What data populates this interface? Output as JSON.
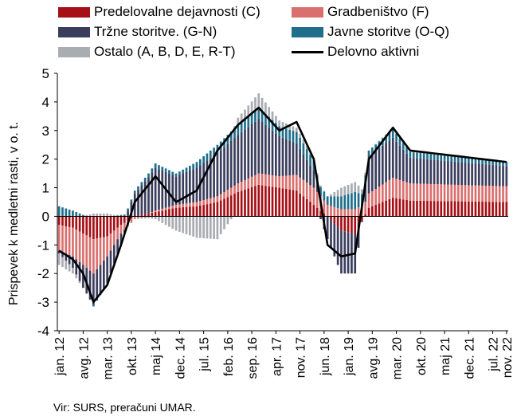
{
  "legend": {
    "manufacturing": "Predelovalne dejavnosti (C)",
    "construction": "Gradbeništvo (F)",
    "market": "Tržne storitve. (G-N)",
    "public": "Javne storitve (O-Q)",
    "other": "Ostalo (A, B, D, E, R-T)",
    "employed": "Delovno aktivni"
  },
  "source": "Vir: SURS, preračuni UMAR.",
  "colors": {
    "manufacturing": "#a50f15",
    "construction": "#d9706e",
    "market": "#3a3d5c",
    "public": "#1f6f8b",
    "other": "#a9acb0",
    "line": "#000000"
  },
  "chart_data": {
    "type": "bar",
    "stacked": true,
    "ylabel": "Prispevek k medletni rasti, v o. t.",
    "ylim": [
      -4,
      5
    ],
    "yticks": [
      -4,
      -3,
      -2,
      -1,
      0,
      1,
      2,
      3,
      4,
      5
    ],
    "xtick_labels": [
      "jan. 12",
      "avg. 12",
      "mar. 13",
      "okt. 13",
      "maj 14",
      "dec. 14",
      "jul. 15",
      "feb. 16",
      "sep. 16",
      "apr. 17",
      "nov. 17",
      "jun. 18",
      "jan. 19",
      "avg. 19",
      "mar. 20",
      "okt. 20",
      "maj 21",
      "dec. 21",
      "jul. 22",
      "nov. 22"
    ],
    "anchors": [
      {
        "m": 0,
        "mfg": -0.3,
        "con": -0.9,
        "mkt": -0.1,
        "pub": 0.35,
        "oth": -0.4,
        "line": -1.2
      },
      {
        "m": 4,
        "mfg": -0.4,
        "con": -1.0,
        "mkt": -0.4,
        "pub": 0.2,
        "oth": -0.2,
        "line": -1.5
      },
      {
        "m": 7,
        "mfg": -0.6,
        "con": -1.1,
        "mkt": -0.8,
        "pub": 0.05,
        "oth": 0.0,
        "line": -2.0
      },
      {
        "m": 10,
        "mfg": -0.8,
        "con": -1.2,
        "mkt": -1.1,
        "pub": -0.05,
        "oth": 0.1,
        "line": -3.0
      },
      {
        "m": 14,
        "mfg": -0.7,
        "con": -0.7,
        "mkt": -0.9,
        "pub": -0.05,
        "oth": 0.1,
        "line": -2.4
      },
      {
        "m": 18,
        "mfg": -0.3,
        "con": -0.3,
        "mkt": -0.4,
        "pub": 0.05,
        "oth": 0.0,
        "line": -1.0
      },
      {
        "m": 22,
        "mfg": 0.0,
        "con": -0.1,
        "mkt": 0.8,
        "pub": 0.1,
        "oth": 0.0,
        "line": 0.5
      },
      {
        "m": 28,
        "mfg": 0.15,
        "con": 0.05,
        "mkt": 1.5,
        "pub": 0.15,
        "oth": -0.1,
        "line": 1.4
      },
      {
        "m": 34,
        "mfg": 0.3,
        "con": 0.1,
        "mkt": 1.0,
        "pub": 0.1,
        "oth": -0.5,
        "line": 0.5
      },
      {
        "m": 40,
        "mfg": 0.35,
        "con": 0.15,
        "mkt": 1.2,
        "pub": 0.2,
        "oth": -0.75,
        "line": 0.9
      },
      {
        "m": 46,
        "mfg": 0.5,
        "con": 0.2,
        "mkt": 1.5,
        "pub": 0.3,
        "oth": -0.8,
        "line": 2.3
      },
      {
        "m": 52,
        "mfg": 0.85,
        "con": 0.3,
        "mkt": 1.7,
        "pub": 0.35,
        "oth": 0.25,
        "line": 3.2
      },
      {
        "m": 58,
        "mfg": 1.1,
        "con": 0.4,
        "mkt": 1.9,
        "pub": 0.4,
        "oth": 0.5,
        "line": 3.8
      },
      {
        "m": 64,
        "mfg": 1.0,
        "con": 0.4,
        "mkt": 1.4,
        "pub": 0.35,
        "oth": 0.2,
        "line": 3.0
      },
      {
        "m": 69,
        "mfg": 0.9,
        "con": 0.55,
        "mkt": 1.1,
        "pub": 0.4,
        "oth": 0.15,
        "line": 3.3
      },
      {
        "m": 74,
        "mfg": 0.4,
        "con": 0.6,
        "mkt": 0.6,
        "pub": 0.35,
        "oth": 0.1,
        "line": 2.0
      },
      {
        "m": 78,
        "mfg": 0.0,
        "con": 0.4,
        "mkt": -0.8,
        "pub": 0.3,
        "oth": 0.0,
        "line": -1.0
      },
      {
        "m": 82,
        "mfg": -0.5,
        "con": 0.25,
        "mkt": -1.5,
        "pub": 0.45,
        "oth": 0.3,
        "line": -1.4
      },
      {
        "m": 86,
        "mfg": -0.6,
        "con": 0.25,
        "mkt": -1.4,
        "pub": 0.6,
        "oth": 0.35,
        "line": -1.3
      },
      {
        "m": 90,
        "mfg": 0.3,
        "con": 0.5,
        "mkt": 1.3,
        "pub": 0.2,
        "oth": 0.0,
        "line": 2.0
      },
      {
        "m": 97,
        "mfg": 0.65,
        "con": 0.7,
        "mkt": 1.4,
        "pub": 0.3,
        "oth": 0.05,
        "line": 3.1
      },
      {
        "m": 102,
        "mfg": 0.55,
        "con": 0.6,
        "mkt": 0.9,
        "pub": 0.2,
        "oth": 0.05,
        "line": 2.3
      },
      {
        "m": 130,
        "mfg": 0.5,
        "con": 0.55,
        "mkt": 0.7,
        "pub": 0.15,
        "oth": 0.0,
        "line": 1.9
      }
    ],
    "total_months": 131
  }
}
